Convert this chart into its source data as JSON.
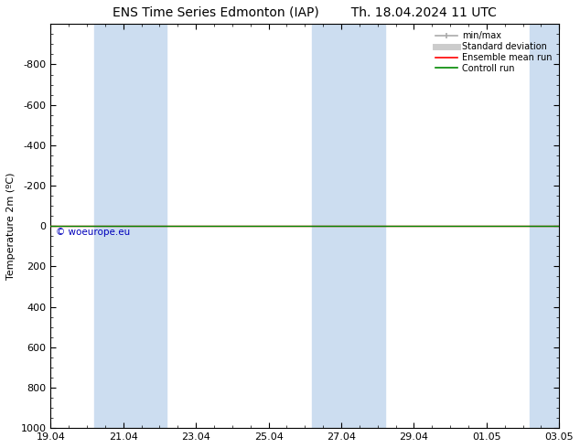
{
  "title_left": "ENS Time Series Edmonton (IAP)",
  "title_right": "Th. 18.04.2024 11 UTC",
  "ylabel": "Temperature 2m (ºC)",
  "ylim_bottom": 1000,
  "ylim_top": -1000,
  "yticks": [
    -800,
    -600,
    -400,
    -200,
    0,
    200,
    400,
    600,
    800,
    1000
  ],
  "xtick_labels": [
    "19.04",
    "21.04",
    "23.04",
    "25.04",
    "27.04",
    "29.04",
    "01.05",
    "03.05"
  ],
  "xtick_positions": [
    0,
    2,
    4,
    6,
    8,
    10,
    12,
    14
  ],
  "shaded_bands": [
    {
      "xmin": 1.2,
      "xmax": 3.2
    },
    {
      "xmin": 7.2,
      "xmax": 9.2
    },
    {
      "xmin": 13.2,
      "xmax": 14.0
    }
  ],
  "band_color": "#ccddf0",
  "horizontal_line_y": 0,
  "line_color_ensemble": "#ff0000",
  "line_color_control": "#008800",
  "watermark": "© woeurope.eu",
  "watermark_color": "#0000bb",
  "legend_labels": [
    "min/max",
    "Standard deviation",
    "Ensemble mean run",
    "Controll run"
  ],
  "legend_colors_line": [
    "#aaaaaa",
    "#cccccc",
    "#ff0000",
    "#008800"
  ],
  "background_color": "#ffffff",
  "title_fontsize": 10,
  "axis_fontsize": 8,
  "tick_fontsize": 8,
  "legend_fontsize": 7
}
